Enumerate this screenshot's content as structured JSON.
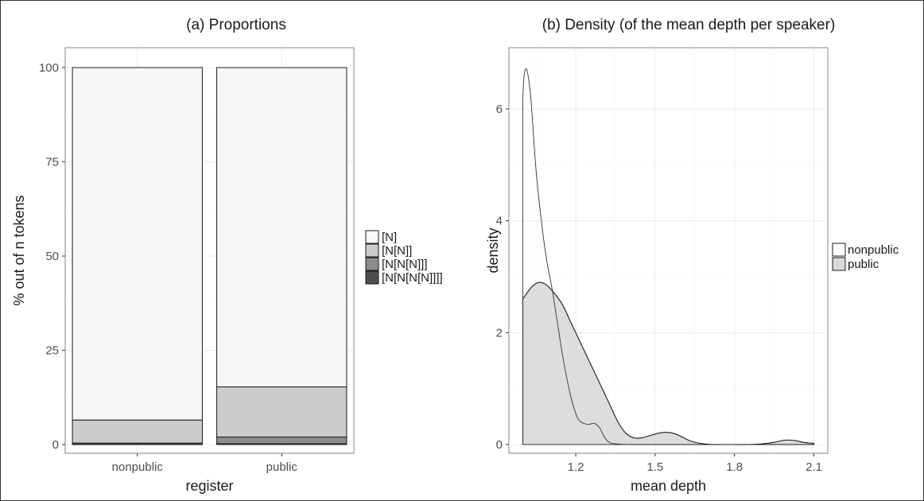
{
  "chart_data": [
    {
      "type": "bar",
      "title": "(a) Proportions",
      "xlabel": "register",
      "ylabel": "% out of n tokens",
      "categories": [
        "nonpublic",
        "public"
      ],
      "ylim": [
        0,
        100
      ],
      "yticks": [
        0,
        25,
        50,
        75,
        100
      ],
      "stacked": true,
      "grid": true,
      "legend_placement": "right",
      "series": [
        {
          "name": "[N[N[N[N]]]]",
          "values": [
            0.1,
            0.2
          ],
          "color": "#4d4d4d"
        },
        {
          "name": "[N[N[N]]]",
          "values": [
            0.3,
            1.8
          ],
          "color": "#8c8c8c"
        },
        {
          "name": "[N[N]]",
          "values": [
            6.1,
            13.3
          ],
          "color": "#cccccc"
        },
        {
          "name": "[N]",
          "values": [
            93.5,
            84.7
          ],
          "color": "#f7f7f7"
        }
      ],
      "legend_order": [
        "[N]",
        "[N[N]]",
        "[N[N[N]]]",
        "[N[N[N[N]]]]"
      ]
    },
    {
      "type": "area",
      "title": "(b) Density (of the mean depth per speaker)",
      "xlabel": "mean depth",
      "ylabel": "density",
      "xlim": [
        1.0,
        2.1
      ],
      "ylim": [
        0,
        7
      ],
      "xticks": [
        1.2,
        1.5,
        1.8,
        2.1
      ],
      "yticks": [
        0,
        2,
        4,
        6
      ],
      "grid": true,
      "legend_placement": "right",
      "series": [
        {
          "name": "nonpublic",
          "fill": "#ffffff",
          "x": [
            1.0,
            1.005,
            1.015,
            1.03,
            1.05,
            1.07,
            1.09,
            1.11,
            1.13,
            1.15,
            1.17,
            1.19,
            1.21,
            1.23,
            1.25,
            1.27,
            1.29,
            1.31,
            1.33,
            1.36,
            1.4
          ],
          "y": [
            6.2,
            6.6,
            6.7,
            6.2,
            4.9,
            4.0,
            3.3,
            2.8,
            2.2,
            1.6,
            1.1,
            0.7,
            0.45,
            0.38,
            0.36,
            0.38,
            0.3,
            0.12,
            0.03,
            0.01,
            0.0
          ]
        },
        {
          "name": "public",
          "fill": "#d9d9d9",
          "x": [
            1.0,
            1.03,
            1.06,
            1.09,
            1.12,
            1.15,
            1.18,
            1.21,
            1.24,
            1.27,
            1.3,
            1.33,
            1.36,
            1.39,
            1.42,
            1.45,
            1.48,
            1.51,
            1.54,
            1.57,
            1.6,
            1.63,
            1.66,
            1.69,
            1.72,
            1.75,
            1.8,
            1.85,
            1.9,
            1.95,
            1.98,
            2.0,
            2.03,
            2.06,
            2.1
          ],
          "y": [
            2.6,
            2.8,
            2.9,
            2.85,
            2.7,
            2.5,
            2.2,
            1.9,
            1.6,
            1.3,
            1.0,
            0.7,
            0.4,
            0.2,
            0.12,
            0.12,
            0.16,
            0.2,
            0.22,
            0.2,
            0.14,
            0.07,
            0.03,
            0.01,
            0.0,
            0.0,
            0.0,
            0.0,
            0.01,
            0.04,
            0.07,
            0.08,
            0.07,
            0.04,
            0.02
          ]
        }
      ]
    }
  ]
}
